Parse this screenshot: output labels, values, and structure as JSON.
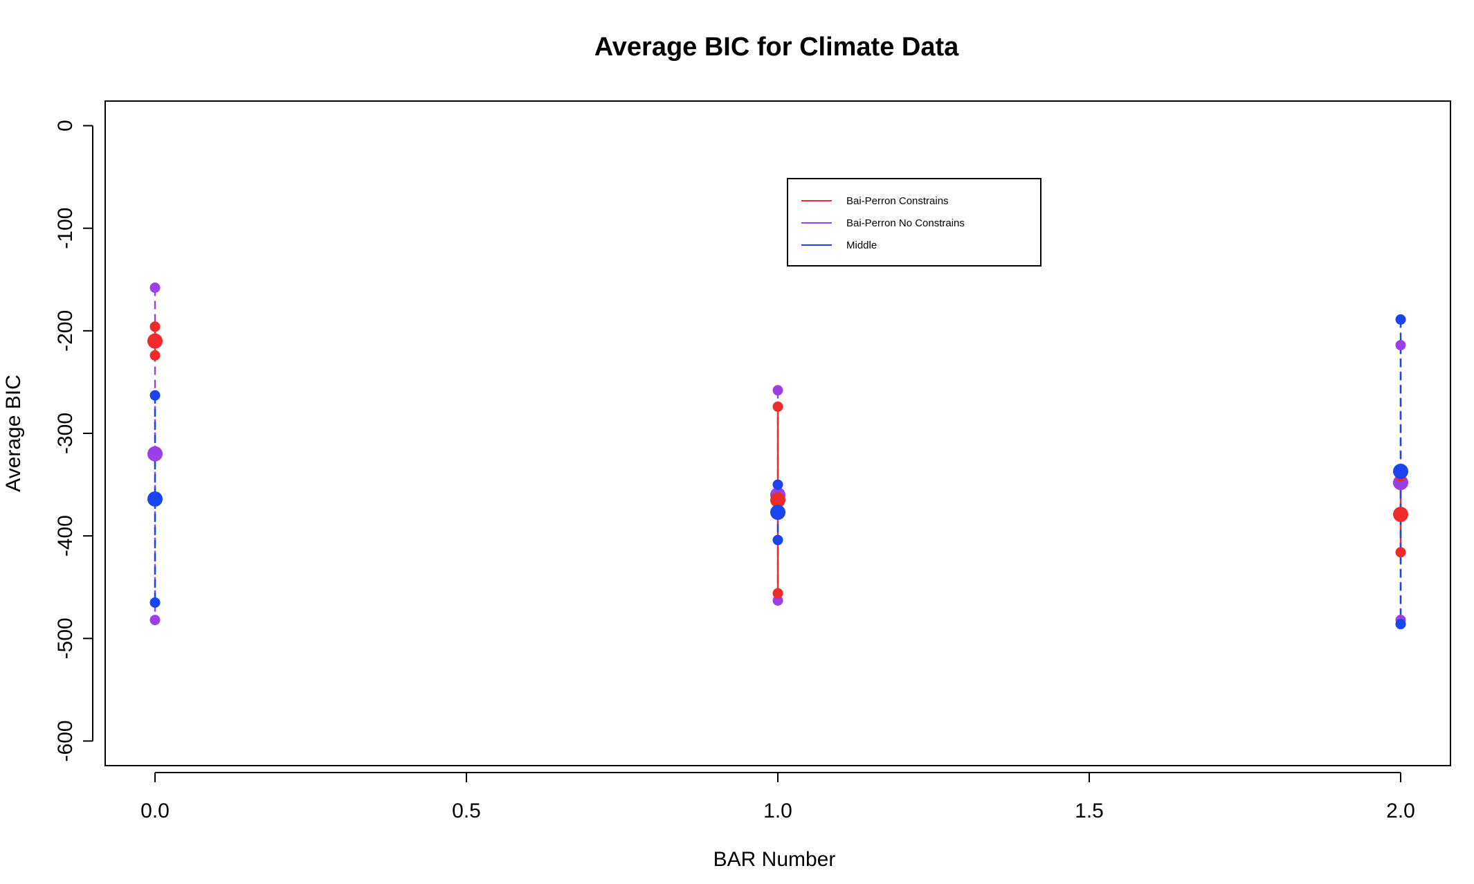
{
  "chart_data": {
    "type": "scatter",
    "title": "Average BIC for Climate Data",
    "xlabel": "BAR Number",
    "ylabel": "Average BIC",
    "xlim": [
      -0.08,
      2.08
    ],
    "ylim": [
      -624,
      24
    ],
    "xticks": [
      0.0,
      0.5,
      1.0,
      1.5,
      2.0
    ],
    "xtick_labels": [
      "0.0",
      "0.5",
      "1.0",
      "1.5",
      "2.0"
    ],
    "yticks": [
      0,
      -100,
      -200,
      -300,
      -400,
      -500,
      -600
    ],
    "ytick_labels": [
      "0",
      "-100",
      "-200",
      "-300",
      "-400",
      "-500",
      "-600"
    ],
    "legend_position": "top-center",
    "grid": false,
    "series": [
      {
        "name": "Bai-Perron Constrains",
        "color": "#ee2a2a",
        "line_style": "solid",
        "points": [
          {
            "x": 0,
            "mean": -210,
            "low": -224,
            "high": -196
          },
          {
            "x": 1,
            "mean": -365,
            "low": -456,
            "high": -274
          },
          {
            "x": 2,
            "mean": -379,
            "low": -416,
            "high": -342
          }
        ]
      },
      {
        "name": "Bai-Perron No Constrains",
        "color": "#9b3fe8",
        "line_style": "dashed",
        "points": [
          {
            "x": 0,
            "mean": -320,
            "low": -482,
            "high": -158
          },
          {
            "x": 1,
            "mean": -360,
            "low": -463,
            "high": -258
          },
          {
            "x": 2,
            "mean": -348,
            "low": -482,
            "high": -214
          }
        ]
      },
      {
        "name": "Middle",
        "color": "#1a44f0",
        "line_style": "dashed",
        "points": [
          {
            "x": 0,
            "mean": -364,
            "low": -465,
            "high": -263
          },
          {
            "x": 1,
            "mean": -377,
            "low": -404,
            "high": -350
          },
          {
            "x": 2,
            "mean": -337,
            "low": -486,
            "high": -189
          }
        ]
      }
    ]
  }
}
